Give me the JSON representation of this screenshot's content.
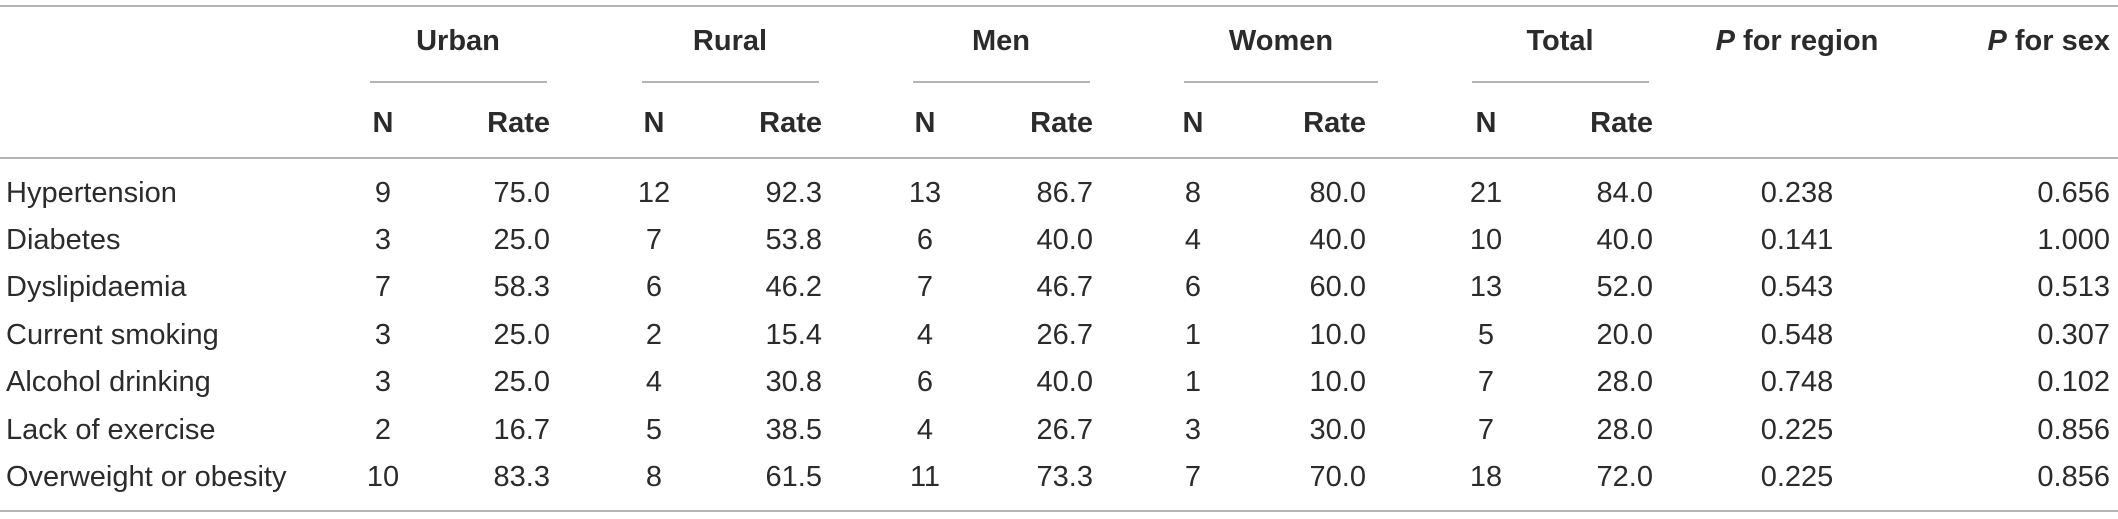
{
  "groups": [
    {
      "label": "Urban",
      "n": "N",
      "rate": "Rate"
    },
    {
      "label": "Rural",
      "n": "N",
      "rate": "Rate"
    },
    {
      "label": "Men",
      "n": "N",
      "rate": "Rate"
    },
    {
      "label": "Women",
      "n": "N",
      "rate": "Rate"
    },
    {
      "label": "Total",
      "n": "N",
      "rate": "Rate"
    }
  ],
  "p_region": {
    "p": "P",
    "rest": " for region"
  },
  "p_sex": {
    "p": "P",
    "rest": " for sex"
  },
  "rows": [
    {
      "label": "Hypertension",
      "cells": [
        "9",
        "75.0",
        "12",
        "92.3",
        "13",
        "86.7",
        "8",
        "80.0",
        "21",
        "84.0"
      ],
      "p_region": "0.238",
      "p_sex": "0.656"
    },
    {
      "label": "Diabetes",
      "cells": [
        "3",
        "25.0",
        "7",
        "53.8",
        "6",
        "40.0",
        "4",
        "40.0",
        "10",
        "40.0"
      ],
      "p_region": "0.141",
      "p_sex": "1.000"
    },
    {
      "label": "Dyslipidaemia",
      "cells": [
        "7",
        "58.3",
        "6",
        "46.2",
        "7",
        "46.7",
        "6",
        "60.0",
        "13",
        "52.0"
      ],
      "p_region": "0.543",
      "p_sex": "0.513"
    },
    {
      "label": "Current smoking",
      "cells": [
        "3",
        "25.0",
        "2",
        "15.4",
        "4",
        "26.7",
        "1",
        "10.0",
        "5",
        "20.0"
      ],
      "p_region": "0.548",
      "p_sex": "0.307"
    },
    {
      "label": "Alcohol drinking",
      "cells": [
        "3",
        "25.0",
        "4",
        "30.8",
        "6",
        "40.0",
        "1",
        "10.0",
        "7",
        "28.0"
      ],
      "p_region": "0.748",
      "p_sex": "0.102"
    },
    {
      "label": "Lack of exercise",
      "cells": [
        "2",
        "16.7",
        "5",
        "38.5",
        "4",
        "26.7",
        "3",
        "30.0",
        "7",
        "28.0"
      ],
      "p_region": "0.225",
      "p_sex": "0.856"
    },
    {
      "label": "Overweight or obesity",
      "cells": [
        "10",
        "83.3",
        "8",
        "61.5",
        "11",
        "73.3",
        "7",
        "70.0",
        "18",
        "72.0"
      ],
      "p_region": "0.225",
      "p_sex": "0.856"
    }
  ]
}
